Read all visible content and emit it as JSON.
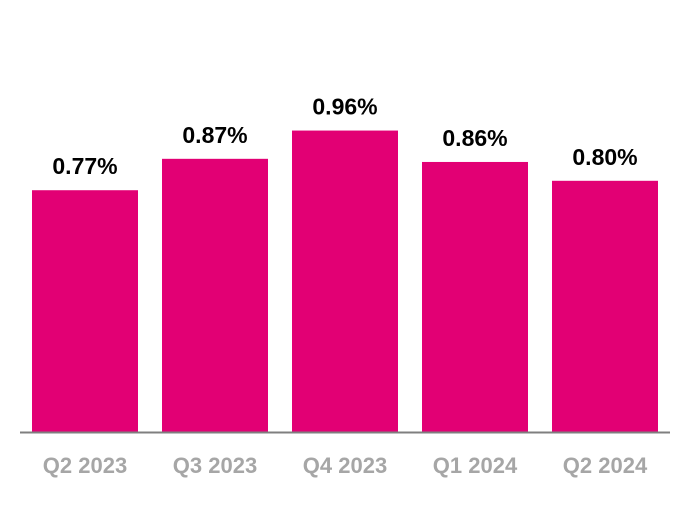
{
  "chart_data": {
    "type": "bar",
    "title": "",
    "xlabel": "",
    "ylabel": "",
    "categories": [
      "Q2 2023",
      "Q3 2023",
      "Q4 2023",
      "Q1 2024",
      "Q2 2024"
    ],
    "values": [
      0.77,
      0.87,
      0.96,
      0.86,
      0.8
    ],
    "data_labels": [
      "0.77%",
      "0.87%",
      "0.96%",
      "0.86%",
      "0.80%"
    ],
    "ylim": [
      0,
      1.1
    ],
    "grid": false,
    "legend": "none",
    "colors": {
      "bar": "#E20074",
      "axis": "#7f7f7f",
      "category_label": "#A6A6A6",
      "data_label": "#000000"
    }
  }
}
